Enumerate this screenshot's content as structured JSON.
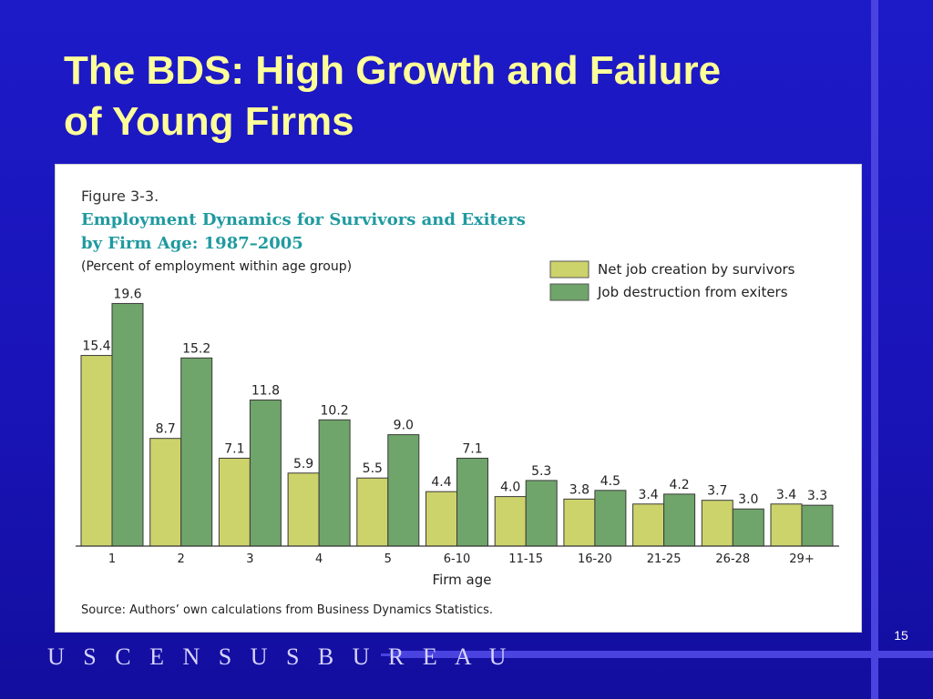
{
  "slide": {
    "title_line1": "The BDS: High Growth and Failure",
    "title_line2": "of Young Firms",
    "footer": "U S C E N S U S B U R E A U",
    "page_number": "15"
  },
  "chart_data": {
    "type": "bar",
    "figure_label": "Figure 3-3.",
    "title_line1": "Employment Dynamics for Survivors and Exiters",
    "title_line2": "by Firm Age: 1987–2005",
    "subtitle": "(Percent of employment within age group)",
    "xlabel": "Firm age",
    "ylabel": "",
    "ylim": [
      0,
      20
    ],
    "grid": false,
    "legend_position": "top-right",
    "categories": [
      "1",
      "2",
      "3",
      "4",
      "5",
      "6-10",
      "11-15",
      "16-20",
      "21-25",
      "26-28",
      "29+"
    ],
    "series": [
      {
        "name": "Net job creation by survivors",
        "color": "#cdd36b",
        "values": [
          15.4,
          8.7,
          7.1,
          5.9,
          5.5,
          4.4,
          4.0,
          3.8,
          3.4,
          3.7,
          3.4
        ],
        "labels": [
          "15.4",
          "8.7",
          "7.1",
          "5.9",
          "5.5",
          "4.4",
          "4.0",
          "3.8",
          "3.4",
          "3.7",
          "3.4"
        ]
      },
      {
        "name": "Job destruction from exiters",
        "color": "#6fa56a",
        "values": [
          19.6,
          15.2,
          11.8,
          10.2,
          9.0,
          7.1,
          5.3,
          4.5,
          4.2,
          3.0,
          3.3
        ],
        "labels": [
          "19.6",
          "15.2",
          "11.8",
          "10.2",
          "9.0",
          "7.1",
          "5.3",
          "4.5",
          "4.2",
          "3.0",
          "3.3"
        ]
      }
    ],
    "source": "Source: Authors’ own calculations from Business Dynamics Statistics."
  }
}
